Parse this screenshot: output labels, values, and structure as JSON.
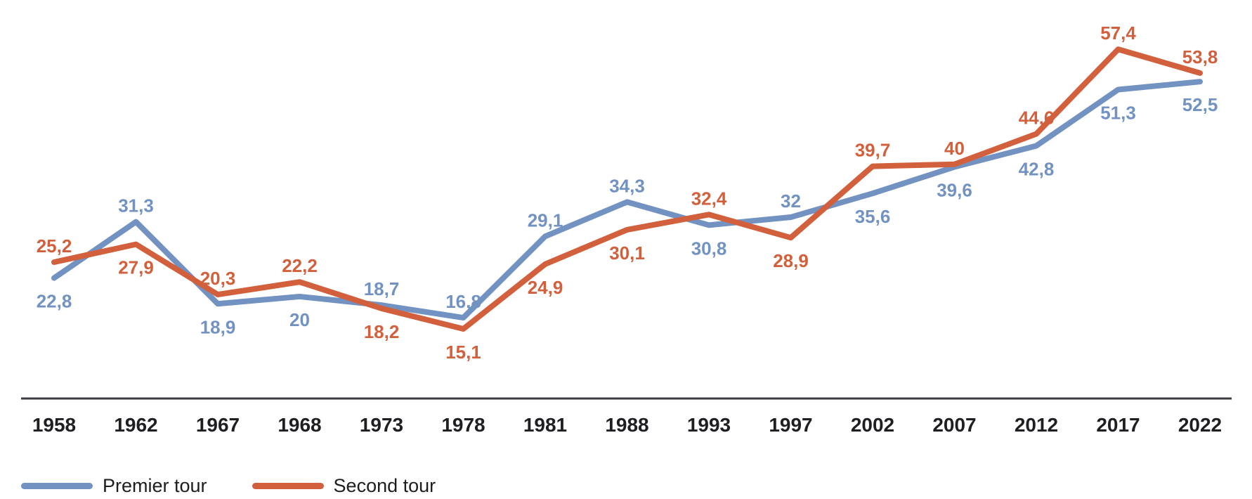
{
  "chart_data": {
    "type": "line",
    "title": "",
    "xlabel": "",
    "ylabel": "",
    "grid": false,
    "legend_position": "bottom-left",
    "decimal_separator": ",",
    "x": [
      "1958",
      "1962",
      "1967",
      "1968",
      "1973",
      "1978",
      "1981",
      "1988",
      "1993",
      "1997",
      "2002",
      "2007",
      "2012",
      "2017",
      "2022"
    ],
    "ylim": [
      11.7,
      60.6
    ],
    "series": [
      {
        "name": "Premier tour",
        "color": "#7292C2",
        "values": [
          22.8,
          31.3,
          18.9,
          20,
          18.7,
          16.8,
          29.1,
          34.3,
          30.8,
          32,
          35.6,
          39.6,
          42.8,
          51.3,
          52.5
        ],
        "labels": [
          "22,8",
          "31,3",
          "18,9",
          "20",
          "18,7",
          "16,8",
          "29,1",
          "34,3",
          "30,8",
          "32",
          "35,6",
          "39,6",
          "42,8",
          "51,3",
          "52,5"
        ]
      },
      {
        "name": "Second tour",
        "color": "#D2603C",
        "values": [
          25.2,
          27.9,
          20.3,
          22.2,
          18.2,
          15.1,
          24.9,
          30.1,
          32.4,
          28.9,
          39.7,
          40,
          44.6,
          57.4,
          53.8
        ],
        "labels": [
          "25,2",
          "27,9",
          "20,3",
          "22,2",
          "18,2",
          "15,1",
          "24,9",
          "30,1",
          "32,4",
          "28,9",
          "39,7",
          "40",
          "44,6",
          "57,4",
          "53,8"
        ]
      }
    ]
  },
  "axis": {
    "line_color": "#3E3E42",
    "tick_label_color": "#1F1F23"
  },
  "legend": {
    "items": [
      {
        "label": "Premier tour",
        "color": "#7292C2"
      },
      {
        "label": "Second tour",
        "color": "#D2603C"
      }
    ]
  },
  "background_color": "#FFFFFF"
}
